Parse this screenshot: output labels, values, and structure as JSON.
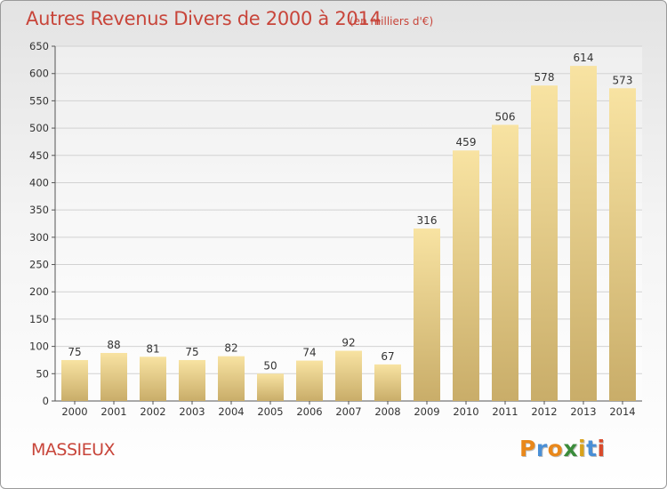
{
  "title": "Autres Revenus Divers de 2000 à 2014",
  "subtitle": "(en milliers d'€)",
  "commune": "MASSIEUX",
  "brand": {
    "text": "Proxiti",
    "letter_colors": [
      "#e9881b",
      "#4a8fd6",
      "#e9881b",
      "#3b8c3b",
      "#d9a21b",
      "#4a8fd6",
      "#d94a2b"
    ]
  },
  "colors": {
    "bar_light": "#f8e3a2",
    "bar_dark": "#c9ad69",
    "title": "#c8453a"
  },
  "chart_data": {
    "type": "bar",
    "categories": [
      "2000",
      "2001",
      "2002",
      "2003",
      "2004",
      "2005",
      "2006",
      "2007",
      "2008",
      "2009",
      "2010",
      "2011",
      "2012",
      "2013",
      "2014"
    ],
    "values": [
      75,
      88,
      81,
      75,
      82,
      50,
      74,
      92,
      67,
      316,
      459,
      506,
      578,
      614,
      573
    ],
    "data_labels": [
      "75",
      "88",
      "81",
      "75",
      "82",
      "50",
      "74",
      "92",
      "67",
      "316",
      "459",
      "506",
      "578",
      "614",
      "573"
    ],
    "y_ticks": [
      0,
      50,
      100,
      150,
      200,
      250,
      300,
      350,
      400,
      450,
      500,
      550,
      600,
      650
    ],
    "ylim": [
      0,
      650
    ],
    "grid": true,
    "xlabel": "",
    "ylabel": ""
  }
}
